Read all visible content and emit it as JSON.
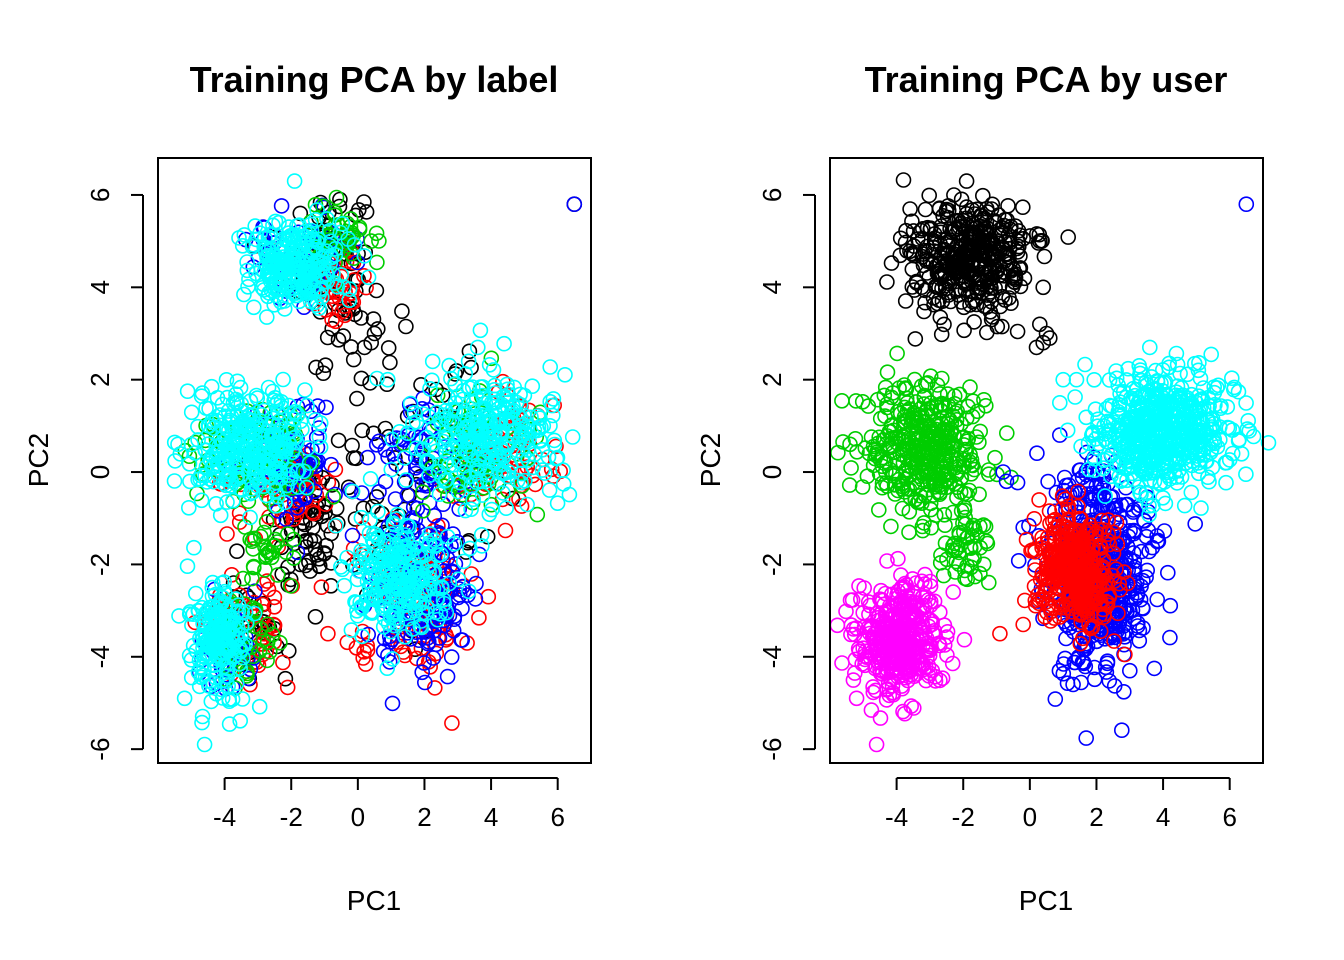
{
  "chart_data": [
    {
      "type": "scatter",
      "title": "Training PCA by label",
      "xlabel": "PC1",
      "ylabel": "PC2",
      "xlim": [
        -6.0,
        7.0
      ],
      "ylim": [
        -6.3,
        6.8
      ],
      "xticks": [
        "-4",
        "-2",
        "0",
        "2",
        "4",
        "6"
      ],
      "yticks": [
        "-6",
        "-4",
        "-2",
        "0",
        "2",
        "4",
        "6"
      ],
      "marker": "open-circle",
      "grid": false,
      "legend": "none",
      "series": [
        {
          "color": "#000000",
          "clusters": [
            {
              "cx": -1.0,
              "cy": 4.6,
              "sx": 0.6,
              "sy": 0.8,
              "n": 100
            },
            {
              "cx": -1.5,
              "cy": -1.3,
              "sx": 0.5,
              "sy": 0.6,
              "n": 60
            },
            {
              "cx": 1.5,
              "cy": 0.0,
              "sx": 1.5,
              "sy": 1.5,
              "n": 80
            },
            {
              "cx": -3.3,
              "cy": -3.5,
              "sx": 0.6,
              "sy": 0.6,
              "n": 40
            }
          ],
          "points": [
            [
              6.5,
              5.8
            ],
            [
              0.4,
              2.8
            ],
            [
              0.5,
              3.0
            ],
            [
              0.6,
              3.1
            ],
            [
              -0.3,
              3.5
            ],
            [
              0.2,
              2.7
            ],
            [
              3.9,
              -1.4
            ]
          ]
        },
        {
          "color": "#ff0000",
          "clusters": [
            {
              "cx": -0.5,
              "cy": 4.1,
              "sx": 0.4,
              "sy": 0.4,
              "n": 40
            },
            {
              "cx": -2.2,
              "cy": -0.4,
              "sx": 0.8,
              "sy": 0.5,
              "n": 60
            },
            {
              "cx": 1.7,
              "cy": -2.6,
              "sx": 0.9,
              "sy": 0.8,
              "n": 120
            },
            {
              "cx": 4.2,
              "cy": 0.3,
              "sx": 0.9,
              "sy": 0.7,
              "n": 70
            },
            {
              "cx": -3.5,
              "cy": -3.4,
              "sx": 0.7,
              "sy": 0.6,
              "n": 60
            }
          ],
          "points": [
            [
              -0.9,
              -3.5
            ]
          ]
        },
        {
          "color": "#0000ff",
          "clusters": [
            {
              "cx": -1.8,
              "cy": 4.8,
              "sx": 0.8,
              "sy": 0.5,
              "n": 50
            },
            {
              "cx": -2.0,
              "cy": 0.2,
              "sx": 0.7,
              "sy": 0.6,
              "n": 80
            },
            {
              "cx": 2.0,
              "cy": -2.6,
              "sx": 0.8,
              "sy": 0.9,
              "n": 150
            },
            {
              "cx": 2.0,
              "cy": 0.2,
              "sx": 0.9,
              "sy": 0.7,
              "n": 60
            },
            {
              "cx": -3.8,
              "cy": -3.8,
              "sx": 0.4,
              "sy": 0.5,
              "n": 40
            }
          ],
          "points": [
            [
              6.5,
              5.8
            ]
          ]
        },
        {
          "color": "#00cd00",
          "clusters": [
            {
              "cx": -0.6,
              "cy": 5.1,
              "sx": 0.5,
              "sy": 0.4,
              "n": 40
            },
            {
              "cx": -3.0,
              "cy": 0.3,
              "sx": 1.0,
              "sy": 0.6,
              "n": 80
            },
            {
              "cx": -2.6,
              "cy": -1.5,
              "sx": 0.4,
              "sy": 0.4,
              "n": 30
            },
            {
              "cx": 3.5,
              "cy": 0.6,
              "sx": 0.9,
              "sy": 0.7,
              "n": 80
            },
            {
              "cx": -3.5,
              "cy": -3.5,
              "sx": 0.6,
              "sy": 0.6,
              "n": 50
            }
          ],
          "points": [
            [
              0.4,
              5.0
            ]
          ]
        },
        {
          "color": "#ff00ff",
          "clusters": [
            {
              "cx": -3.6,
              "cy": -3.6,
              "sx": 0.6,
              "sy": 0.6,
              "n": 0
            }
          ],
          "points": []
        },
        {
          "color": "#00ffff",
          "clusters": [
            {
              "cx": -1.9,
              "cy": 4.5,
              "sx": 0.7,
              "sy": 0.5,
              "n": 260
            },
            {
              "cx": -3.3,
              "cy": 0.5,
              "sx": 0.9,
              "sy": 0.6,
              "n": 320
            },
            {
              "cx": 1.2,
              "cy": -2.3,
              "sx": 0.8,
              "sy": 0.6,
              "n": 260
            },
            {
              "cx": 3.8,
              "cy": 0.8,
              "sx": 1.1,
              "sy": 0.7,
              "n": 300
            },
            {
              "cx": -4.2,
              "cy": -3.7,
              "sx": 0.45,
              "sy": 0.6,
              "n": 200
            }
          ],
          "points": [
            [
              -1.9,
              6.3
            ],
            [
              -5.4,
              0.6
            ],
            [
              -4.6,
              -5.9
            ],
            [
              -5.2,
              -4.9
            ],
            [
              3.6,
              2.7
            ],
            [
              0.9,
              2.0
            ]
          ]
        }
      ]
    },
    {
      "type": "scatter",
      "title": "Training PCA by user",
      "xlabel": "PC1",
      "ylabel": "PC2",
      "xlim": [
        -6.0,
        7.0
      ],
      "ylim": [
        -6.3,
        6.8
      ],
      "xticks": [
        "-4",
        "-2",
        "0",
        "2",
        "4",
        "6"
      ],
      "yticks": [
        "-6",
        "-4",
        "-2",
        "0",
        "2",
        "4",
        "6"
      ],
      "marker": "open-circle",
      "grid": false,
      "legend": "none",
      "series": [
        {
          "color": "#000000",
          "clusters": [
            {
              "cx": -1.8,
              "cy": 4.6,
              "sx": 0.9,
              "sy": 0.6,
              "n": 400
            }
          ],
          "points": [
            [
              -1.9,
              6.3
            ],
            [
              0.3,
              3.2
            ],
            [
              0.5,
              3.0
            ],
            [
              0.6,
              2.9
            ],
            [
              0.4,
              2.8
            ],
            [
              0.2,
              2.7
            ],
            [
              0.4,
              4.0
            ],
            [
              0.3,
              5.0
            ]
          ]
        },
        {
          "color": "#00cd00",
          "clusters": [
            {
              "cx": -3.2,
              "cy": 0.5,
              "sx": 0.9,
              "sy": 0.7,
              "n": 400
            },
            {
              "cx": -2.0,
              "cy": -1.6,
              "sx": 0.4,
              "sy": 0.4,
              "n": 50
            }
          ],
          "points": [
            [
              -5.4,
              0.6
            ],
            [
              -1.3,
              -1.5
            ],
            [
              -1.5,
              -2.2
            ]
          ]
        },
        {
          "color": "#ff00ff",
          "clusters": [
            {
              "cx": -3.9,
              "cy": -3.6,
              "sx": 0.6,
              "sy": 0.6,
              "n": 400
            }
          ],
          "points": [
            [
              -4.6,
              -5.9
            ],
            [
              -5.2,
              -4.9
            ],
            [
              -2.3,
              -2.6
            ]
          ]
        },
        {
          "color": "#0000ff",
          "clusters": [
            {
              "cx": 2.1,
              "cy": -2.4,
              "sx": 0.8,
              "sy": 0.9,
              "n": 500
            },
            {
              "cx": 1.8,
              "cy": -0.5,
              "sx": 0.6,
              "sy": 0.6,
              "n": 60
            }
          ],
          "points": [
            [
              6.5,
              5.8
            ],
            [
              -0.8,
              0.0
            ],
            [
              -0.7,
              -0.2
            ],
            [
              -0.2,
              -1.2
            ],
            [
              1.3,
              -4.6
            ],
            [
              0.9,
              0.8
            ],
            [
              3.5,
              -1.4
            ]
          ]
        },
        {
          "color": "#ff0000",
          "clusters": [
            {
              "cx": 1.3,
              "cy": -2.1,
              "sx": 0.6,
              "sy": 0.6,
              "n": 400
            }
          ],
          "points": [
            [
              -0.9,
              -3.5
            ],
            [
              -0.2,
              -3.3
            ]
          ]
        },
        {
          "color": "#00ffff",
          "clusters": [
            {
              "cx": 4.0,
              "cy": 0.9,
              "sx": 1.0,
              "sy": 0.6,
              "n": 600
            }
          ],
          "points": [
            [
              3.6,
              2.7
            ],
            [
              1.0,
              2.0
            ],
            [
              1.4,
              2.0
            ],
            [
              0.9,
              1.5
            ]
          ]
        }
      ]
    }
  ]
}
